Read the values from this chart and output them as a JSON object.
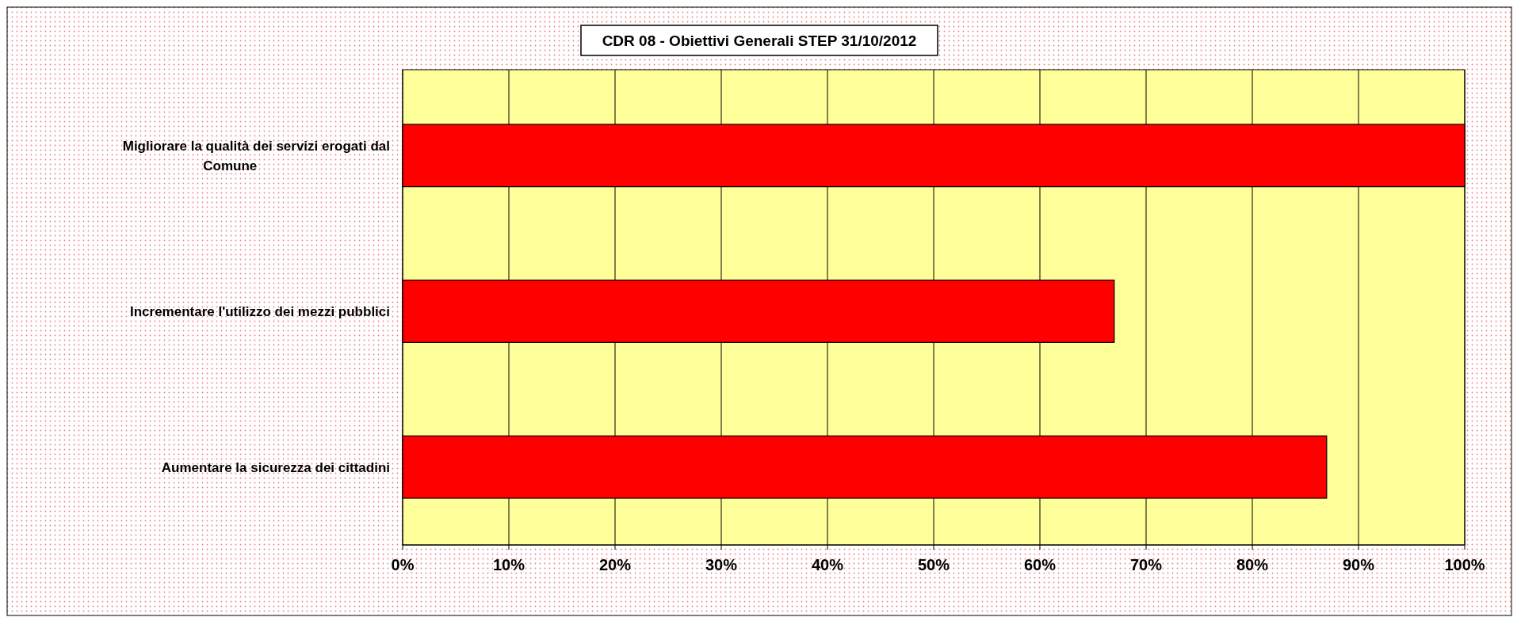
{
  "chart_data": {
    "type": "bar",
    "orientation": "horizontal",
    "title": "CDR 08 - Obiettivi Generali STEP 31/10/2012",
    "categories": [
      "Migliorare la qualità dei servizi erogati dal Comune",
      "Incrementare l'utilizzo dei mezzi pubblici",
      "Aumentare la sicurezza dei cittadini"
    ],
    "values": [
      100,
      67,
      87
    ],
    "color": "#ff0000",
    "xlim": [
      0,
      100
    ],
    "xticks": [
      {
        "value": 0,
        "label": "0%"
      },
      {
        "value": 10,
        "label": "10%"
      },
      {
        "value": 20,
        "label": "20%"
      },
      {
        "value": 30,
        "label": "30%"
      },
      {
        "value": 40,
        "label": "40%"
      },
      {
        "value": 50,
        "label": "50%"
      },
      {
        "value": 60,
        "label": "60%"
      },
      {
        "value": 70,
        "label": "70%"
      },
      {
        "value": 80,
        "label": "80%"
      },
      {
        "value": 90,
        "label": "90%"
      },
      {
        "value": 100,
        "label": "100%"
      }
    ],
    "grid": "x"
  }
}
